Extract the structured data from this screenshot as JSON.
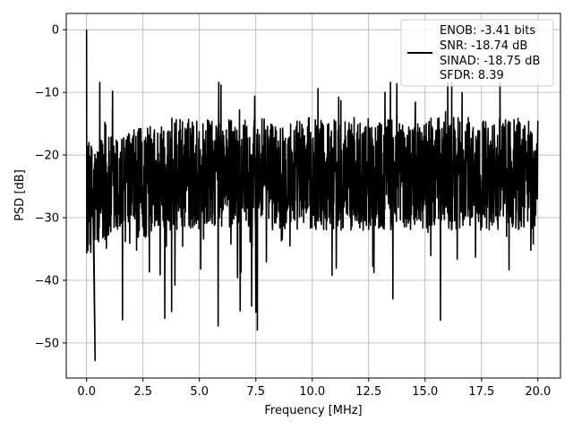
{
  "chart_data": {
    "type": "line",
    "title": "",
    "xlabel": "Frequency [MHz]",
    "ylabel": "PSD [dB]",
    "xlim": [
      -0.9,
      21.0
    ],
    "ylim": [
      -55.6,
      2.6
    ],
    "xticks": [
      0.0,
      2.5,
      5.0,
      7.5,
      10.0,
      12.5,
      15.0,
      17.5,
      20.0
    ],
    "xtick_labels": [
      "0.0",
      "2.5",
      "5.0",
      "7.5",
      "10.0",
      "12.5",
      "15.0",
      "17.5",
      "20.0"
    ],
    "yticks": [
      0,
      -10,
      -20,
      -30,
      -40,
      -50
    ],
    "ytick_labels": [
      "0",
      "−10",
      "−20",
      "−30",
      "−40",
      "−50"
    ],
    "grid": true,
    "legend_position": "top-right",
    "legend_entries": [
      "ENOB: -3.41 bits",
      "SNR: -18.74 dB",
      "SINAD: -18.75 dB",
      "SFDR: 8.39"
    ],
    "series": [
      {
        "color": "#000000",
        "x_start": 0.0,
        "x_end": 20.0,
        "peak": [
          0.0,
          0.0
        ],
        "min_point": [
          0.38,
          -52.8
        ],
        "noise_floor_center_db": -23,
        "noise_ceiling_db": -8.4,
        "noise_floor_min_db": -48
      }
    ]
  }
}
